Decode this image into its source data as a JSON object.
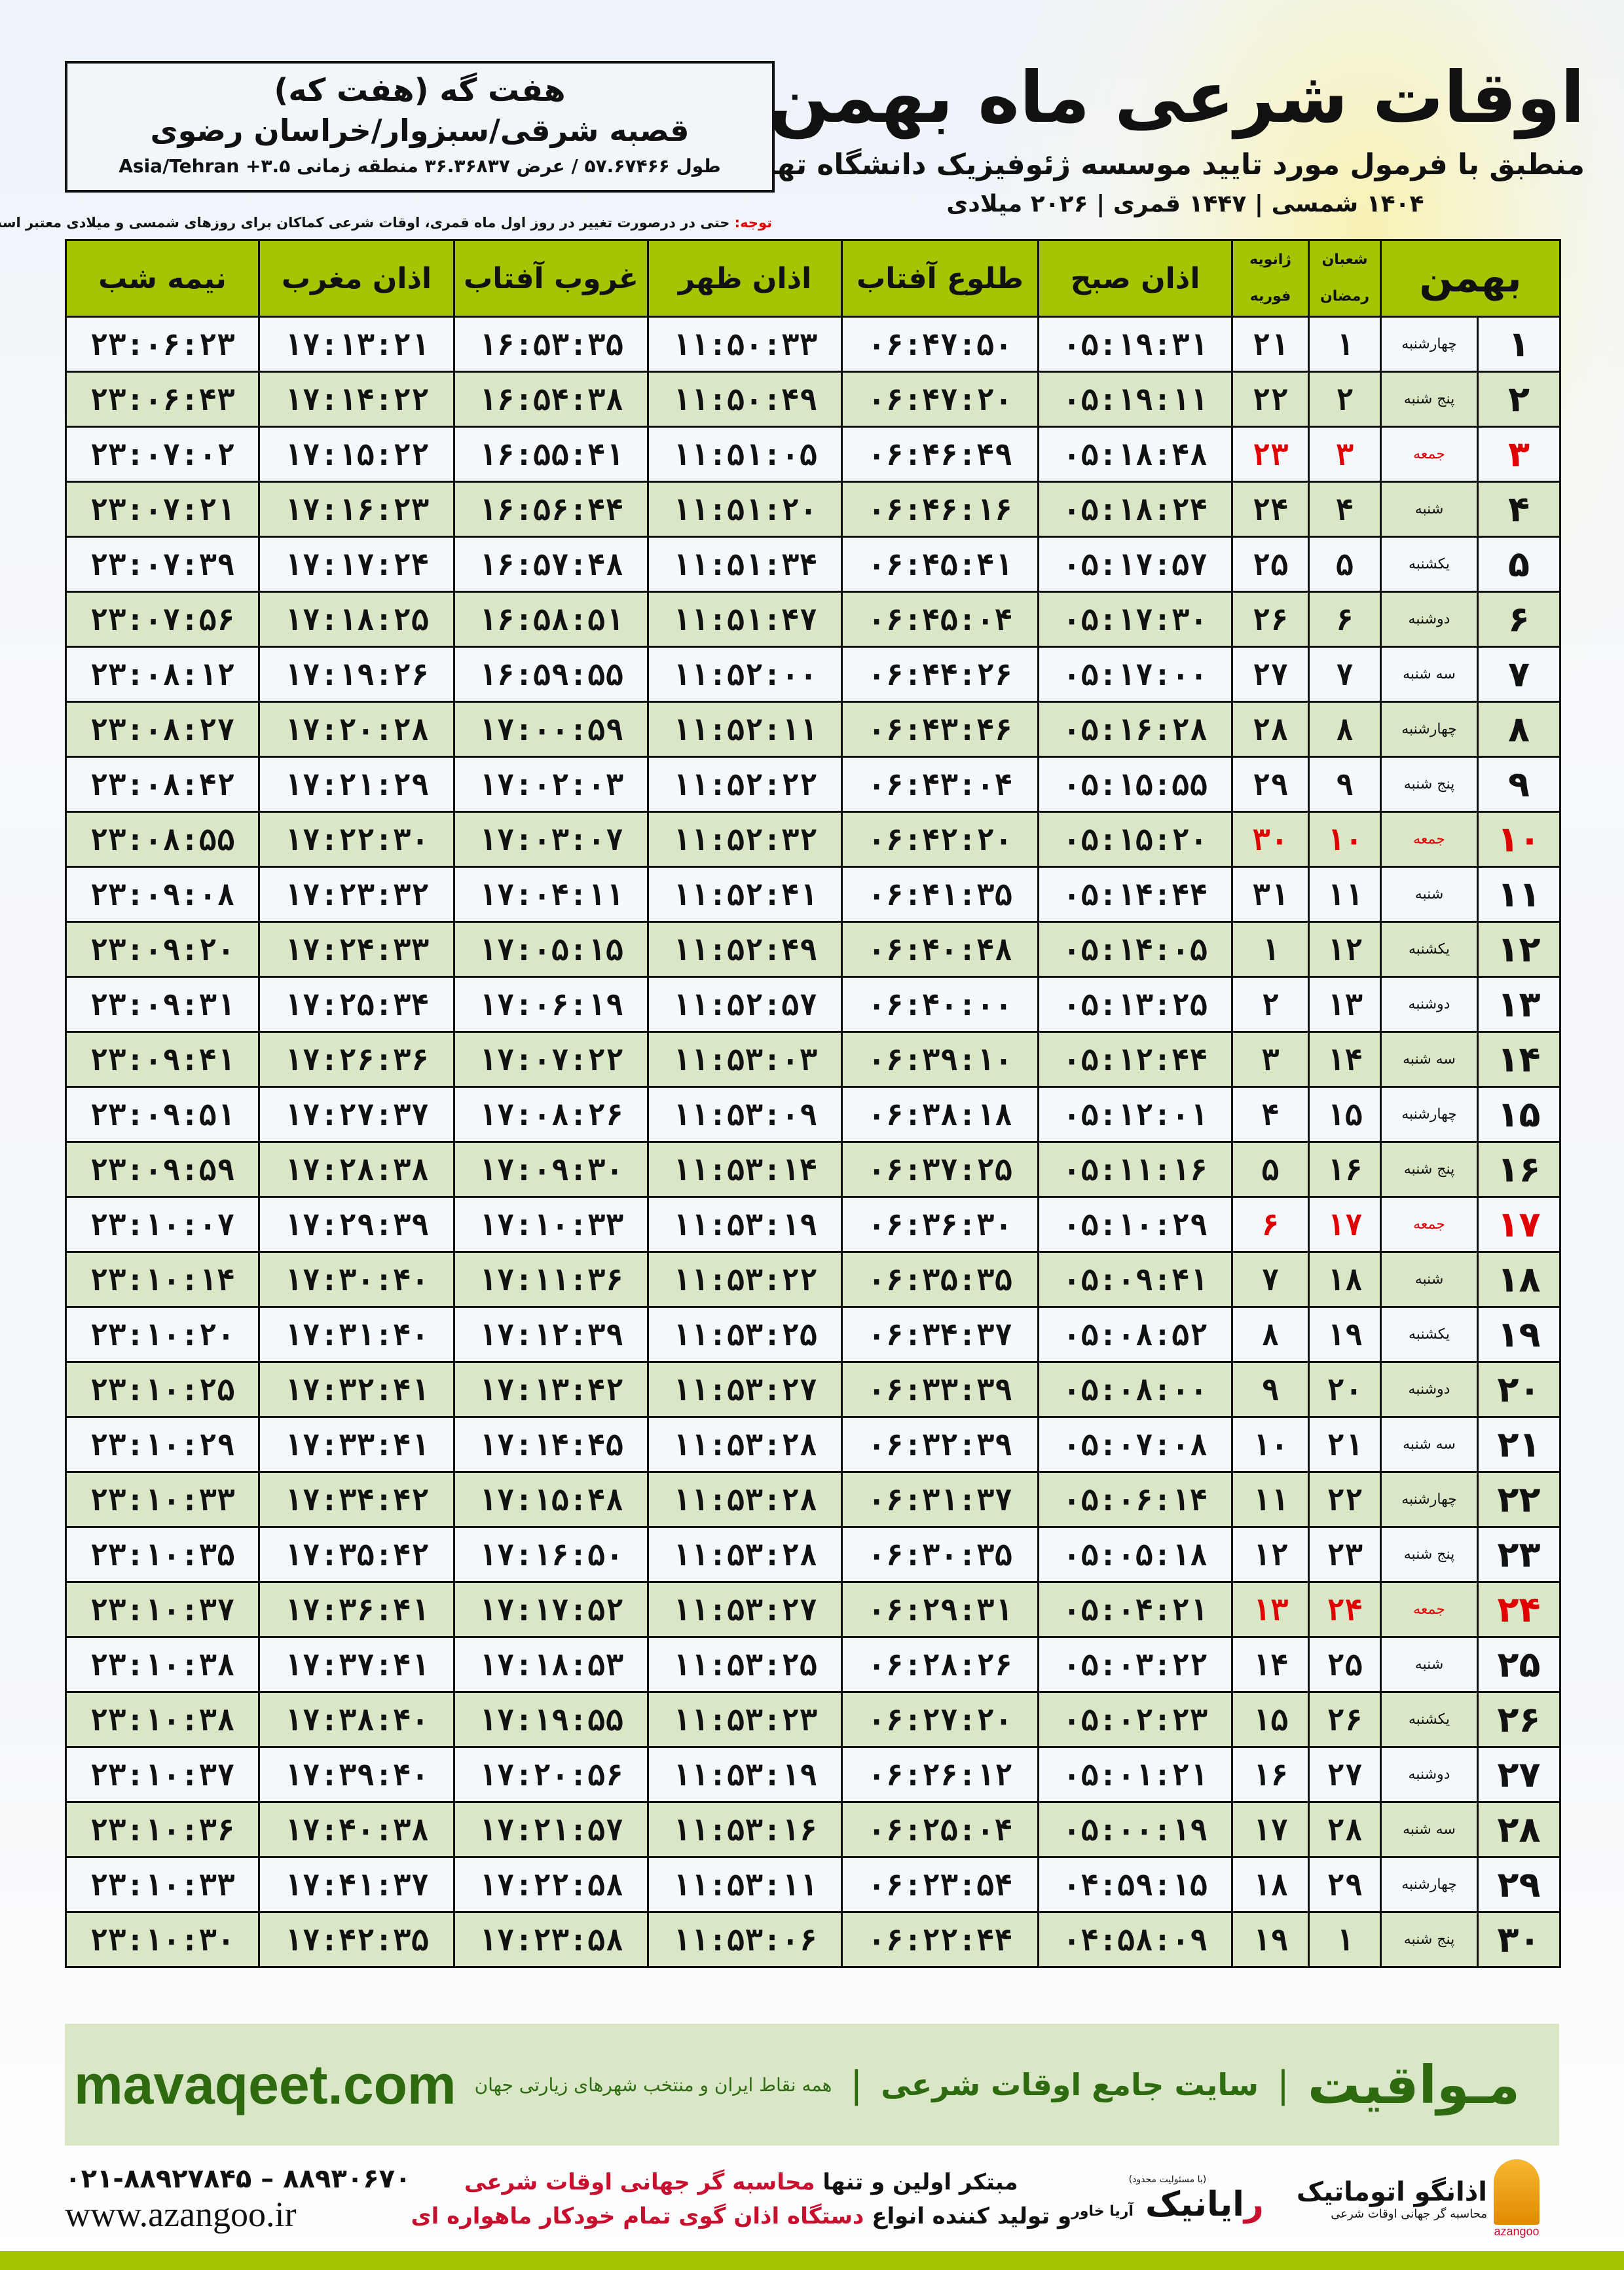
{
  "header": {
    "title": "اوقات شرعی ماه بهمن",
    "subtitle": "منطبق با فرمول مورد تایید موسسه ژئوفیزیک دانشگاه تهران",
    "date_line": "۱۴۰۴ شمسی | ۱۴۴۷ قمری | ۲۰۲۶ میلادی"
  },
  "location": {
    "name": "هفت گه (هفت که)",
    "path": "قصبه شرقی/سبزوار/خراسان رضوی",
    "coords": "طول ۵۷.۶۷۴۶۶ / عرض ۳۶.۳۶۸۳۷ منطقه زمانی ۳.۵+ Asia/Tehran"
  },
  "note": {
    "label": "توجه:",
    "text": " حتی در درصورت تغییر در روز اول ماه قمری، اوقات شرعی کماکان برای روزهای شمسی و میلادی معتبر است."
  },
  "table": {
    "headers": {
      "day": "بهمن",
      "weekday": "",
      "hijri_top": "شعبان",
      "hijri_bottom": "رمضان",
      "greg_top": "ژانویه",
      "greg_bottom": "فوریه",
      "fajr": "اذان صبح",
      "sunrise": "طلوع آفتاب",
      "dhuhr": "اذان ظهر",
      "sunset": "غروب آفتاب",
      "maghrib": "اذان مغرب",
      "midnight": "نیمه شب"
    },
    "holiday_weekday": "جمعه",
    "colors": {
      "header_bg": "#a6c400",
      "row_alt": "#d9e7c7",
      "row": "#f5f8fc",
      "holiday": "#e00000"
    },
    "rows": [
      [
        "۱",
        "چهارشنبه",
        "۱",
        "۲۱",
        "۰۵:۱۹:۳۱",
        "۰۶:۴۷:۵۰",
        "۱۱:۵۰:۳۳",
        "۱۶:۵۳:۳۵",
        "۱۷:۱۳:۲۱",
        "۲۳:۰۶:۲۳"
      ],
      [
        "۲",
        "پنج شنبه",
        "۲",
        "۲۲",
        "۰۵:۱۹:۱۱",
        "۰۶:۴۷:۲۰",
        "۱۱:۵۰:۴۹",
        "۱۶:۵۴:۳۸",
        "۱۷:۱۴:۲۲",
        "۲۳:۰۶:۴۳"
      ],
      [
        "۳",
        "جمعه",
        "۳",
        "۲۳",
        "۰۵:۱۸:۴۸",
        "۰۶:۴۶:۴۹",
        "۱۱:۵۱:۰۵",
        "۱۶:۵۵:۴۱",
        "۱۷:۱۵:۲۲",
        "۲۳:۰۷:۰۲"
      ],
      [
        "۴",
        "شنبه",
        "۴",
        "۲۴",
        "۰۵:۱۸:۲۴",
        "۰۶:۴۶:۱۶",
        "۱۱:۵۱:۲۰",
        "۱۶:۵۶:۴۴",
        "۱۷:۱۶:۲۳",
        "۲۳:۰۷:۲۱"
      ],
      [
        "۵",
        "یکشنبه",
        "۵",
        "۲۵",
        "۰۵:۱۷:۵۷",
        "۰۶:۴۵:۴۱",
        "۱۱:۵۱:۳۴",
        "۱۶:۵۷:۴۸",
        "۱۷:۱۷:۲۴",
        "۲۳:۰۷:۳۹"
      ],
      [
        "۶",
        "دوشنبه",
        "۶",
        "۲۶",
        "۰۵:۱۷:۳۰",
        "۰۶:۴۵:۰۴",
        "۱۱:۵۱:۴۷",
        "۱۶:۵۸:۵۱",
        "۱۷:۱۸:۲۵",
        "۲۳:۰۷:۵۶"
      ],
      [
        "۷",
        "سه شنبه",
        "۷",
        "۲۷",
        "۰۵:۱۷:۰۰",
        "۰۶:۴۴:۲۶",
        "۱۱:۵۲:۰۰",
        "۱۶:۵۹:۵۵",
        "۱۷:۱۹:۲۶",
        "۲۳:۰۸:۱۲"
      ],
      [
        "۸",
        "چهارشنبه",
        "۸",
        "۲۸",
        "۰۵:۱۶:۲۸",
        "۰۶:۴۳:۴۶",
        "۱۱:۵۲:۱۱",
        "۱۷:۰۰:۵۹",
        "۱۷:۲۰:۲۸",
        "۲۳:۰۸:۲۷"
      ],
      [
        "۹",
        "پنج شنبه",
        "۹",
        "۲۹",
        "۰۵:۱۵:۵۵",
        "۰۶:۴۳:۰۴",
        "۱۱:۵۲:۲۲",
        "۱۷:۰۲:۰۳",
        "۱۷:۲۱:۲۹",
        "۲۳:۰۸:۴۲"
      ],
      [
        "۱۰",
        "جمعه",
        "۱۰",
        "۳۰",
        "۰۵:۱۵:۲۰",
        "۰۶:۴۲:۲۰",
        "۱۱:۵۲:۳۲",
        "۱۷:۰۳:۰۷",
        "۱۷:۲۲:۳۰",
        "۲۳:۰۸:۵۵"
      ],
      [
        "۱۱",
        "شنبه",
        "۱۱",
        "۳۱",
        "۰۵:۱۴:۴۴",
        "۰۶:۴۱:۳۵",
        "۱۱:۵۲:۴۱",
        "۱۷:۰۴:۱۱",
        "۱۷:۲۳:۳۲",
        "۲۳:۰۹:۰۸"
      ],
      [
        "۱۲",
        "یکشنبه",
        "۱۲",
        "۱",
        "۰۵:۱۴:۰۵",
        "۰۶:۴۰:۴۸",
        "۱۱:۵۲:۴۹",
        "۱۷:۰۵:۱۵",
        "۱۷:۲۴:۳۳",
        "۲۳:۰۹:۲۰"
      ],
      [
        "۱۳",
        "دوشنبه",
        "۱۳",
        "۲",
        "۰۵:۱۳:۲۵",
        "۰۶:۴۰:۰۰",
        "۱۱:۵۲:۵۷",
        "۱۷:۰۶:۱۹",
        "۱۷:۲۵:۳۴",
        "۲۳:۰۹:۳۱"
      ],
      [
        "۱۴",
        "سه شنبه",
        "۱۴",
        "۳",
        "۰۵:۱۲:۴۴",
        "۰۶:۳۹:۱۰",
        "۱۱:۵۳:۰۳",
        "۱۷:۰۷:۲۲",
        "۱۷:۲۶:۳۶",
        "۲۳:۰۹:۴۱"
      ],
      [
        "۱۵",
        "چهارشنبه",
        "۱۵",
        "۴",
        "۰۵:۱۲:۰۱",
        "۰۶:۳۸:۱۸",
        "۱۱:۵۳:۰۹",
        "۱۷:۰۸:۲۶",
        "۱۷:۲۷:۳۷",
        "۲۳:۰۹:۵۱"
      ],
      [
        "۱۶",
        "پنج شنبه",
        "۱۶",
        "۵",
        "۰۵:۱۱:۱۶",
        "۰۶:۳۷:۲۵",
        "۱۱:۵۳:۱۴",
        "۱۷:۰۹:۳۰",
        "۱۷:۲۸:۳۸",
        "۲۳:۰۹:۵۹"
      ],
      [
        "۱۷",
        "جمعه",
        "۱۷",
        "۶",
        "۰۵:۱۰:۲۹",
        "۰۶:۳۶:۳۰",
        "۱۱:۵۳:۱۹",
        "۱۷:۱۰:۳۳",
        "۱۷:۲۹:۳۹",
        "۲۳:۱۰:۰۷"
      ],
      [
        "۱۸",
        "شنبه",
        "۱۸",
        "۷",
        "۰۵:۰۹:۴۱",
        "۰۶:۳۵:۳۵",
        "۱۱:۵۳:۲۲",
        "۱۷:۱۱:۳۶",
        "۱۷:۳۰:۴۰",
        "۲۳:۱۰:۱۴"
      ],
      [
        "۱۹",
        "یکشنبه",
        "۱۹",
        "۸",
        "۰۵:۰۸:۵۲",
        "۰۶:۳۴:۳۷",
        "۱۱:۵۳:۲۵",
        "۱۷:۱۲:۳۹",
        "۱۷:۳۱:۴۰",
        "۲۳:۱۰:۲۰"
      ],
      [
        "۲۰",
        "دوشنبه",
        "۲۰",
        "۹",
        "۰۵:۰۸:۰۰",
        "۰۶:۳۳:۳۹",
        "۱۱:۵۳:۲۷",
        "۱۷:۱۳:۴۲",
        "۱۷:۳۲:۴۱",
        "۲۳:۱۰:۲۵"
      ],
      [
        "۲۱",
        "سه شنبه",
        "۲۱",
        "۱۰",
        "۰۵:۰۷:۰۸",
        "۰۶:۳۲:۳۹",
        "۱۱:۵۳:۲۸",
        "۱۷:۱۴:۴۵",
        "۱۷:۳۳:۴۱",
        "۲۳:۱۰:۲۹"
      ],
      [
        "۲۲",
        "چهارشنبه",
        "۲۲",
        "۱۱",
        "۰۵:۰۶:۱۴",
        "۰۶:۳۱:۳۷",
        "۱۱:۵۳:۲۸",
        "۱۷:۱۵:۴۸",
        "۱۷:۳۴:۴۲",
        "۲۳:۱۰:۳۳"
      ],
      [
        "۲۳",
        "پنج شنبه",
        "۲۳",
        "۱۲",
        "۰۵:۰۵:۱۸",
        "۰۶:۳۰:۳۵",
        "۱۱:۵۳:۲۸",
        "۱۷:۱۶:۵۰",
        "۱۷:۳۵:۴۲",
        "۲۳:۱۰:۳۵"
      ],
      [
        "۲۴",
        "جمعه",
        "۲۴",
        "۱۳",
        "۰۵:۰۴:۲۱",
        "۰۶:۲۹:۳۱",
        "۱۱:۵۳:۲۷",
        "۱۷:۱۷:۵۲",
        "۱۷:۳۶:۴۱",
        "۲۳:۱۰:۳۷"
      ],
      [
        "۲۵",
        "شنبه",
        "۲۵",
        "۱۴",
        "۰۵:۰۳:۲۲",
        "۰۶:۲۸:۲۶",
        "۱۱:۵۳:۲۵",
        "۱۷:۱۸:۵۳",
        "۱۷:۳۷:۴۱",
        "۲۳:۱۰:۳۸"
      ],
      [
        "۲۶",
        "یکشنبه",
        "۲۶",
        "۱۵",
        "۰۵:۰۲:۲۳",
        "۰۶:۲۷:۲۰",
        "۱۱:۵۳:۲۳",
        "۱۷:۱۹:۵۵",
        "۱۷:۳۸:۴۰",
        "۲۳:۱۰:۳۸"
      ],
      [
        "۲۷",
        "دوشنبه",
        "۲۷",
        "۱۶",
        "۰۵:۰۱:۲۱",
        "۰۶:۲۶:۱۲",
        "۱۱:۵۳:۱۹",
        "۱۷:۲۰:۵۶",
        "۱۷:۳۹:۴۰",
        "۲۳:۱۰:۳۷"
      ],
      [
        "۲۸",
        "سه شنبه",
        "۲۸",
        "۱۷",
        "۰۵:۰۰:۱۹",
        "۰۶:۲۵:۰۴",
        "۱۱:۵۳:۱۶",
        "۱۷:۲۱:۵۷",
        "۱۷:۴۰:۳۸",
        "۲۳:۱۰:۳۶"
      ],
      [
        "۲۹",
        "چهارشنبه",
        "۲۹",
        "۱۸",
        "۰۴:۵۹:۱۵",
        "۰۶:۲۳:۵۴",
        "۱۱:۵۳:۱۱",
        "۱۷:۲۲:۵۸",
        "۱۷:۴۱:۳۷",
        "۲۳:۱۰:۳۳"
      ],
      [
        "۳۰",
        "پنج شنبه",
        "۱",
        "۱۹",
        "۰۴:۵۸:۰۹",
        "۰۶:۲۲:۴۴",
        "۱۱:۵۳:۰۶",
        "۱۷:۲۳:۵۸",
        "۱۷:۴۲:۳۵",
        "۲۳:۱۰:۳۰"
      ]
    ]
  },
  "footer": {
    "brand": "مـواقیت",
    "separator": "|",
    "site_desc": "سایت جامع اوقات شرعی",
    "sites_desc": "همه نقاط ایران و منتخب شهرهای زیارتی جهان",
    "url": "mavaqeet.com",
    "brand_color": "#2e6a10"
  },
  "bottom": {
    "phone": "۰۲۱-۸۸۹۲۷۸۴۵ – ۸۸۹۳۰۶۷۰",
    "url": "www.azangoo.ir",
    "promo_1a": "مبتکر اولین و تنها ",
    "promo_1b": "محاسبه گر جهانی اوقات شرعی",
    "promo_2a": "و تولید کننده انواع ",
    "promo_2b": "دستگاه اذان گوی تمام خودکار ماهواره ای",
    "logo1_tiny": "(با مسئولیت محدود)",
    "logo1_main_r": "ر",
    "logo1_main": "ایانیک",
    "logo1_side": "آریا خاور",
    "logo2_name": "اذانگو اتوماتیک",
    "logo2_sub": "محاسبه گر جهانی اوقات شرعی",
    "logo2_latin": "azangoo"
  }
}
